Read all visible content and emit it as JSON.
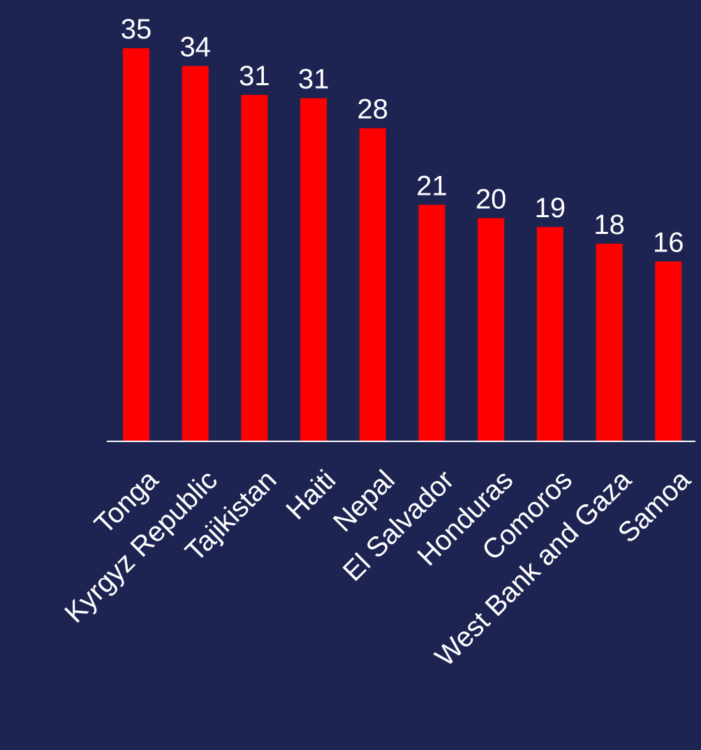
{
  "chart_data": {
    "type": "bar",
    "title": "",
    "xlabel": "",
    "ylabel": "",
    "categories": [
      "Tonga",
      "Kyrgyz Republic",
      "Tajikistan",
      "Haiti",
      "Nepal",
      "El Salvador",
      "Honduras",
      "Comoros",
      "West Bank and Gaza",
      "Samoa"
    ],
    "values": [
      35.4,
      33.8,
      31.2,
      30.9,
      28.2,
      21.3,
      20.1,
      19.3,
      17.8,
      16.2
    ],
    "value_labels": [
      "35",
      "34",
      "31",
      "31",
      "28",
      "21",
      "20",
      "19",
      "18",
      "16"
    ],
    "ylim": [
      0,
      39
    ],
    "grid": false,
    "legend": "none",
    "colors": {
      "background": "#1e2452",
      "bar": "#ff0000",
      "text": "#ffffff",
      "axis": "#ffffff"
    }
  }
}
